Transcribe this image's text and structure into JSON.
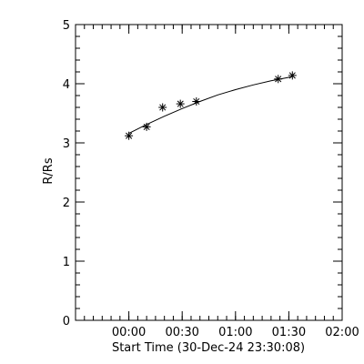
{
  "chart_data": {
    "type": "scatter",
    "xlabel": "Start Time (30-Dec-24 23:30:08)",
    "ylabel": "R/Rs",
    "x_units": "minutes after start time",
    "xlim": [
      0,
      150
    ],
    "ylim": [
      0,
      5
    ],
    "x_ticks": [
      {
        "value": 30,
        "label": "00:00"
      },
      {
        "value": 60,
        "label": "00:30"
      },
      {
        "value": 90,
        "label": "01:00"
      },
      {
        "value": 120,
        "label": "01:30"
      },
      {
        "value": 150,
        "label": "02:00"
      }
    ],
    "y_ticks": [
      {
        "value": 0,
        "label": "0"
      },
      {
        "value": 1,
        "label": "1"
      },
      {
        "value": 2,
        "label": "2"
      },
      {
        "value": 3,
        "label": "3"
      },
      {
        "value": 4,
        "label": "4"
      },
      {
        "value": 5,
        "label": "5"
      }
    ],
    "grid": false,
    "marker": "asterisk",
    "series": [
      {
        "points": [
          {
            "x": 30,
            "y": 3.12
          },
          {
            "x": 40,
            "y": 3.27
          },
          {
            "x": 49,
            "y": 3.6
          },
          {
            "x": 59,
            "y": 3.66
          },
          {
            "x": 68,
            "y": 3.7
          },
          {
            "x": 114,
            "y": 4.08
          },
          {
            "x": 122,
            "y": 4.14
          }
        ]
      }
    ],
    "fit_curve": [
      {
        "x": 30,
        "y": 3.16
      },
      {
        "x": 40,
        "y": 3.31
      },
      {
        "x": 50,
        "y": 3.45
      },
      {
        "x": 60,
        "y": 3.58
      },
      {
        "x": 70,
        "y": 3.7
      },
      {
        "x": 80,
        "y": 3.81
      },
      {
        "x": 90,
        "y": 3.9
      },
      {
        "x": 100,
        "y": 3.98
      },
      {
        "x": 110,
        "y": 4.05
      },
      {
        "x": 122,
        "y": 4.12
      }
    ]
  }
}
